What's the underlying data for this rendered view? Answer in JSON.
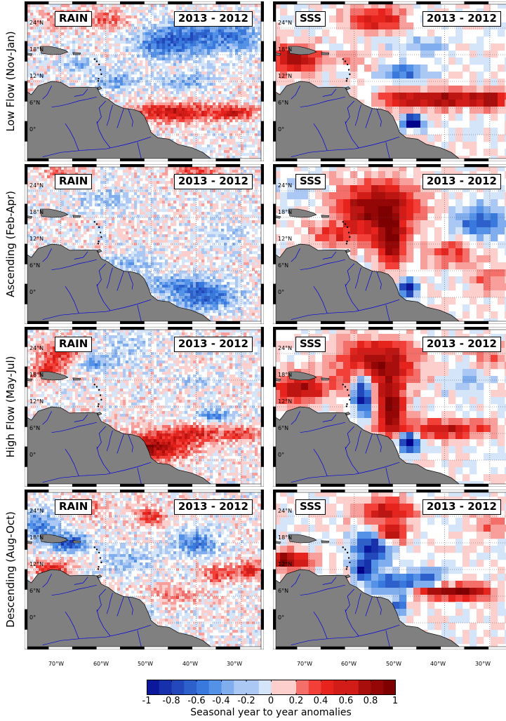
{
  "panels": {
    "left_label": "RAIN",
    "right_label": "SSS",
    "period": "2013 - 2012"
  },
  "rows": [
    {
      "label": "Low Flow (Nov-Jan)"
    },
    {
      "label": "Ascending (Feb-Apr)"
    },
    {
      "label": "High Flow (May-Jul)"
    },
    {
      "label": "Descending (Aug-Oct)"
    }
  ],
  "lat_ticks": [
    "24°N",
    "18°N",
    "12°N",
    "6°N",
    "0°"
  ],
  "lon_ticks": [
    "70°W",
    "60°W",
    "50°W",
    "40°W",
    "30°W"
  ],
  "colorbar": {
    "title": "Seasonal year to year anomalies",
    "tick_labels": [
      "-1",
      "-0.8",
      "-0.6",
      "-0.4",
      "-0.2",
      "0",
      "0.2",
      "0.4",
      "0.6",
      "0.8",
      "1"
    ],
    "range": [
      -1,
      1
    ],
    "levels": 20,
    "colormap": {
      "negative_end": "#00008b",
      "mid_negative": "#3f84e5",
      "zero": "#ffffff",
      "mid_positive": "#f0271f",
      "positive_end": "#7f0000"
    }
  },
  "land_color": "#808080",
  "river_color": "#0000dd",
  "map_extent": {
    "lon": [
      -78,
      -25
    ],
    "lat": [
      -6,
      30
    ]
  }
}
